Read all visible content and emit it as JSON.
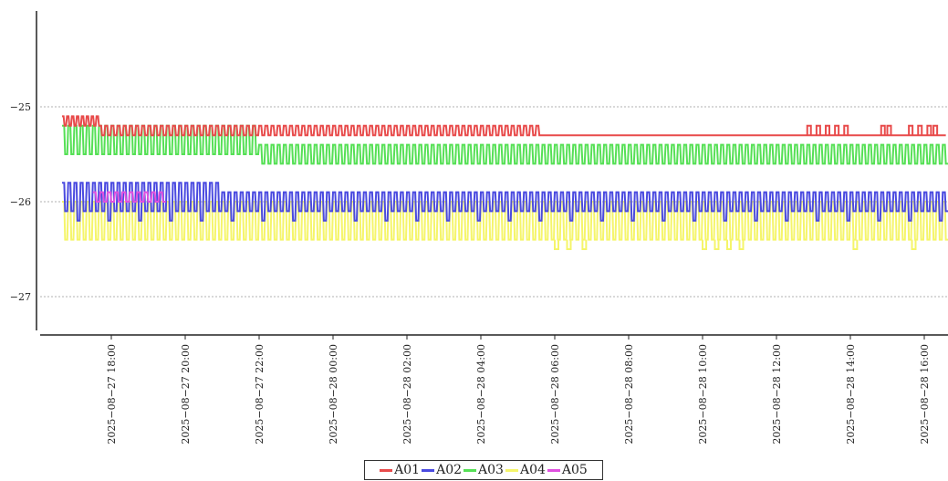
{
  "chart_data": {
    "type": "line",
    "xlabel": "",
    "ylabel": "",
    "title": "",
    "x_range": [
      "2025-08-27 16:35",
      "2025-08-28 16:35"
    ],
    "ylim": [
      -27.4,
      -24.0
    ],
    "y_ticks": [
      -25,
      -26,
      -27
    ],
    "y_tick_labels": [
      "−25",
      "−26",
      "−27"
    ],
    "x_ticks": [
      "2025-08-27 18:00",
      "2025-08-27 20:00",
      "2025-08-27 22:00",
      "2025-08-28 00:00",
      "2025-08-28 02:00",
      "2025-08-28 04:00",
      "2025-08-28 06:00",
      "2025-08-28 08:00",
      "2025-08-28 10:00",
      "2025-08-28 12:00",
      "2025-08-28 14:00",
      "2025-08-28 16:00"
    ],
    "x_tick_labels": [
      "2025−08−27  18:00",
      "2025−08−27  20:00",
      "2025−08−27  22:00",
      "2025−08−28  00:00",
      "2025−08−28  02:00",
      "2025−08−28  04:00",
      "2025−08−28  06:00",
      "2025−08−28  08:00",
      "2025−08−28  10:00",
      "2025−08−28  12:00",
      "2025−08−28  14:00",
      "2025−08−28  16:00"
    ],
    "grid": "horizontal dashed",
    "legend_placement": "bottom-center",
    "series": [
      {
        "name": "A01",
        "color": "#e84b4b",
        "segments": [
          {
            "start": "2025-08-27 16:40",
            "end": "2025-08-27 17:40",
            "values": [
              -25.1,
              -25.2
            ],
            "period_min": 8
          },
          {
            "start": "2025-08-27 17:40",
            "end": "2025-08-28 05:40",
            "values": [
              -25.2,
              -25.3
            ],
            "period_min": 10
          },
          {
            "start": "2025-08-28 05:40",
            "end": "2025-08-28 16:35",
            "values": [
              -25.3
            ],
            "period_min": 0
          }
        ],
        "spikes": {
          "value": -25.2,
          "times": [
            "2025-08-28 12:50",
            "2025-08-28 13:05",
            "2025-08-28 13:20",
            "2025-08-28 13:35",
            "2025-08-28 13:50",
            "2025-08-28 14:50",
            "2025-08-28 15:00",
            "2025-08-28 15:35",
            "2025-08-28 15:50",
            "2025-08-28 16:05",
            "2025-08-28 16:15"
          ]
        }
      },
      {
        "name": "A02",
        "color": "#4a4ae0",
        "segments": [
          {
            "start": "2025-08-27 16:40",
            "end": "2025-08-27 21:00",
            "values": [
              -25.8,
              -26.1
            ],
            "period_min": 10
          },
          {
            "start": "2025-08-27 21:00",
            "end": "2025-08-28 16:40",
            "values": [
              -25.9,
              -26.1
            ],
            "period_min": 10
          }
        ],
        "dips": {
          "value": -26.2,
          "every_nth": 5
        }
      },
      {
        "name": "A03",
        "color": "#55e055",
        "segments": [
          {
            "start": "2025-08-27 16:40",
            "end": "2025-08-27 22:00",
            "values": [
              -25.2,
              -25.5
            ],
            "period_min": 10
          },
          {
            "start": "2025-08-27 22:00",
            "end": "2025-08-28 16:40",
            "values": [
              -25.4,
              -25.6
            ],
            "period_min": 10
          }
        ]
      },
      {
        "name": "A04",
        "color": "#f5f56a",
        "segments": [
          {
            "start": "2025-08-27 16:40",
            "end": "2025-08-28 16:40",
            "values": [
              -26.0,
              -26.4
            ],
            "period_min": 10
          }
        ],
        "dips": {
          "value": -26.5,
          "times": [
            "2025-08-28 06:00",
            "2025-08-28 06:20",
            "2025-08-28 06:45",
            "2025-08-28 10:00",
            "2025-08-28 10:20",
            "2025-08-28 10:40",
            "2025-08-28 11:00",
            "2025-08-28 14:05",
            "2025-08-28 15:40"
          ]
        }
      },
      {
        "name": "A05",
        "color": "#e050e0",
        "segments": [
          {
            "start": "2025-08-27 17:30",
            "end": "2025-08-27 19:30",
            "values": [
              -25.9,
              -26.0
            ],
            "period_min": 12
          }
        ]
      }
    ]
  }
}
